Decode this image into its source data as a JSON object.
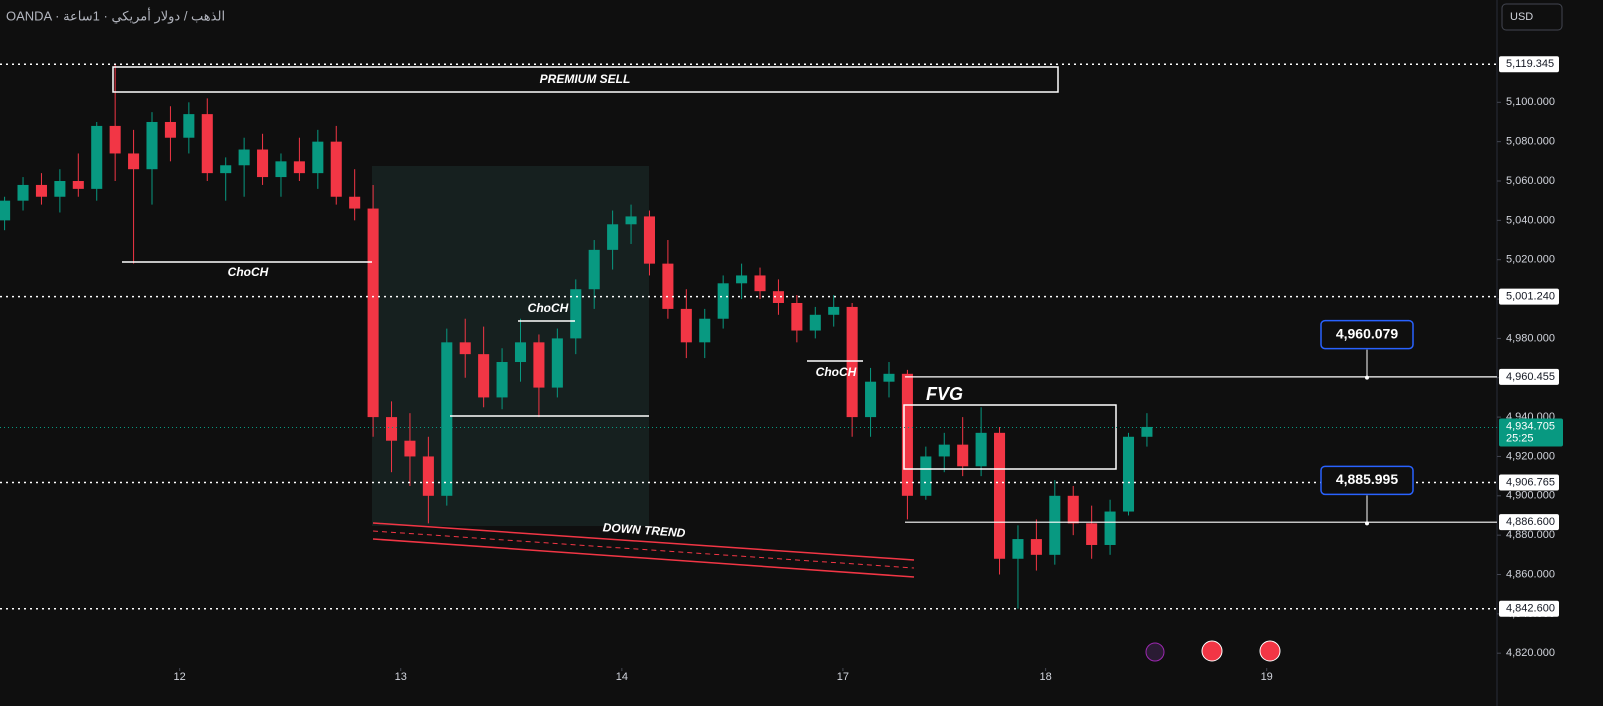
{
  "header": {
    "symbol": "OANDA · الذهب / دولار أمريكي · 1ساعة",
    "currency": "USD"
  },
  "chart_data": {
    "type": "candlestick",
    "x": [
      0,
      2,
      4,
      6,
      8,
      10,
      12,
      14,
      16,
      18,
      20,
      22,
      24,
      26,
      28,
      30,
      32,
      34,
      36,
      38,
      40,
      42,
      44,
      46,
      48,
      50,
      52,
      54,
      56,
      58,
      60,
      62,
      64,
      66,
      68,
      70,
      72,
      74,
      76,
      78,
      80,
      82,
      84,
      86,
      88,
      90,
      92,
      94,
      96,
      98,
      100,
      102,
      104,
      106,
      108,
      110,
      112,
      114,
      116,
      118,
      120,
      122,
      124
    ],
    "open": [
      5040,
      5050,
      5058,
      5052,
      5060,
      5056,
      5088,
      5074,
      5066,
      5090,
      5082,
      5094,
      5064,
      5068,
      5076,
      5062,
      5070,
      5064,
      5080,
      5052,
      5046,
      4940,
      4928,
      4920,
      4900,
      4978,
      4972,
      4950,
      4968,
      4978,
      4955,
      4980,
      5005,
      5025,
      5038,
      5042,
      5018,
      4995,
      4978,
      4990,
      5008,
      5012,
      5004,
      4998,
      4984,
      4992,
      4996,
      4940,
      4958,
      4962,
      4900,
      4920,
      4926,
      4915,
      4932,
      4868,
      4878,
      4870,
      4900,
      4886,
      4875,
      4892,
      4930
    ],
    "high": [
      5052,
      5062,
      5064,
      5066,
      5074,
      5090,
      5119,
      5086,
      5095,
      5098,
      5100,
      5102,
      5072,
      5082,
      5084,
      5074,
      5082,
      5086,
      5088,
      5066,
      5058,
      4948,
      4942,
      4930,
      4985,
      4990,
      4986,
      4975,
      4990,
      4982,
      4985,
      5010,
      5030,
      5045,
      5048,
      5045,
      5030,
      5005,
      4995,
      5012,
      5018,
      5016,
      5010,
      5002,
      4996,
      5002,
      4998,
      4965,
      4968,
      4964,
      4925,
      4932,
      4940,
      4945,
      4935,
      4885,
      4888,
      4908,
      4905,
      4895,
      4898,
      4932,
      4942
    ],
    "low": [
      5035,
      5045,
      5048,
      5044,
      5052,
      5050,
      5060,
      5018,
      5048,
      5070,
      5074,
      5060,
      5050,
      5052,
      5058,
      5052,
      5060,
      5056,
      5048,
      5040,
      4930,
      4912,
      4905,
      4886,
      4895,
      4960,
      4945,
      4944,
      4958,
      4940,
      4950,
      4972,
      4995,
      5015,
      5028,
      5012,
      4990,
      4970,
      4970,
      4985,
      5000,
      5000,
      4992,
      4978,
      4980,
      4986,
      4930,
      4930,
      4950,
      4888,
      4898,
      4912,
      4910,
      4910,
      4860,
      4842.6,
      4862,
      4865,
      4880,
      4868,
      4870,
      4890,
      4925
    ],
    "close": [
      5050,
      5058,
      5052,
      5060,
      5056,
      5088,
      5074,
      5066,
      5090,
      5082,
      5094,
      5064,
      5068,
      5076,
      5062,
      5070,
      5064,
      5080,
      5052,
      5046,
      4940,
      4928,
      4920,
      4900,
      4978,
      4972,
      4950,
      4968,
      4978,
      4955,
      4980,
      5005,
      5025,
      5038,
      5042,
      5018,
      4995,
      4978,
      4990,
      5008,
      5012,
      5004,
      4998,
      4984,
      4992,
      4996,
      4940,
      4958,
      4962,
      4900,
      4920,
      4926,
      4915,
      4932,
      4868,
      4878,
      4870,
      4900,
      4886,
      4875,
      4892,
      4930,
      4935
    ],
    "up_color": "#089981",
    "down_color": "#f23645",
    "xlim": [
      -0.5,
      162
    ],
    "ylim": [
      4814,
      5152
    ],
    "xticks": [
      {
        "value": 19,
        "label": "12"
      },
      {
        "value": 43,
        "label": "13"
      },
      {
        "value": 67,
        "label": "14"
      },
      {
        "value": 91,
        "label": "17"
      },
      {
        "value": 113,
        "label": "18"
      },
      {
        "value": 137,
        "label": "19"
      }
    ],
    "yticks": [
      {
        "value": 4820,
        "label": "4,820.000"
      },
      {
        "value": 4840,
        "label": "4,840.000"
      },
      {
        "value": 4860,
        "label": "4,860.000"
      },
      {
        "value": 4880,
        "label": "4,880.000"
      },
      {
        "value": 4900,
        "label": "4,900.000"
      },
      {
        "value": 4920,
        "label": "4,920.000"
      },
      {
        "value": 4940,
        "label": "4,940.000"
      },
      {
        "value": 4960,
        "label": "4,960.000"
      },
      {
        "value": 4980,
        "label": "4,980.000"
      },
      {
        "value": 5000,
        "label": "5,000.000"
      },
      {
        "value": 5020,
        "label": "5,020.000"
      },
      {
        "value": 5040,
        "label": "5,040.000"
      },
      {
        "value": 5060,
        "label": "5,060.000"
      },
      {
        "value": 5080,
        "label": "5,080.000"
      },
      {
        "value": 5100,
        "label": "5,100.000"
      }
    ],
    "levels": [
      {
        "value": 5119.345,
        "label": "5,119.345",
        "style": "dotted"
      },
      {
        "value": 5001.24,
        "label": "5,001.240",
        "style": "dotted"
      },
      {
        "value": 4960.455,
        "label": "4,960.455",
        "style": "solid"
      },
      {
        "value": 4906.765,
        "label": "4,906.765",
        "style": "dotted"
      },
      {
        "value": 4886.6,
        "label": "4,886.600",
        "style": "solid"
      },
      {
        "value": 4842.6,
        "label": "4,842.600",
        "style": "dotted"
      }
    ],
    "current_price": {
      "value": 4934.705,
      "label": "4,934.705",
      "countdown": "25:25",
      "color": "#089981"
    },
    "callouts": [
      {
        "value": 4960.079,
        "label": "4,960.079"
      },
      {
        "value": 4885.995,
        "label": "4,885.995"
      }
    ],
    "annotations": [
      "PREMIUM SELL",
      "ChoCH",
      "ChoCH",
      "ChoCH",
      "DOWN TREND",
      "FVG"
    ]
  }
}
